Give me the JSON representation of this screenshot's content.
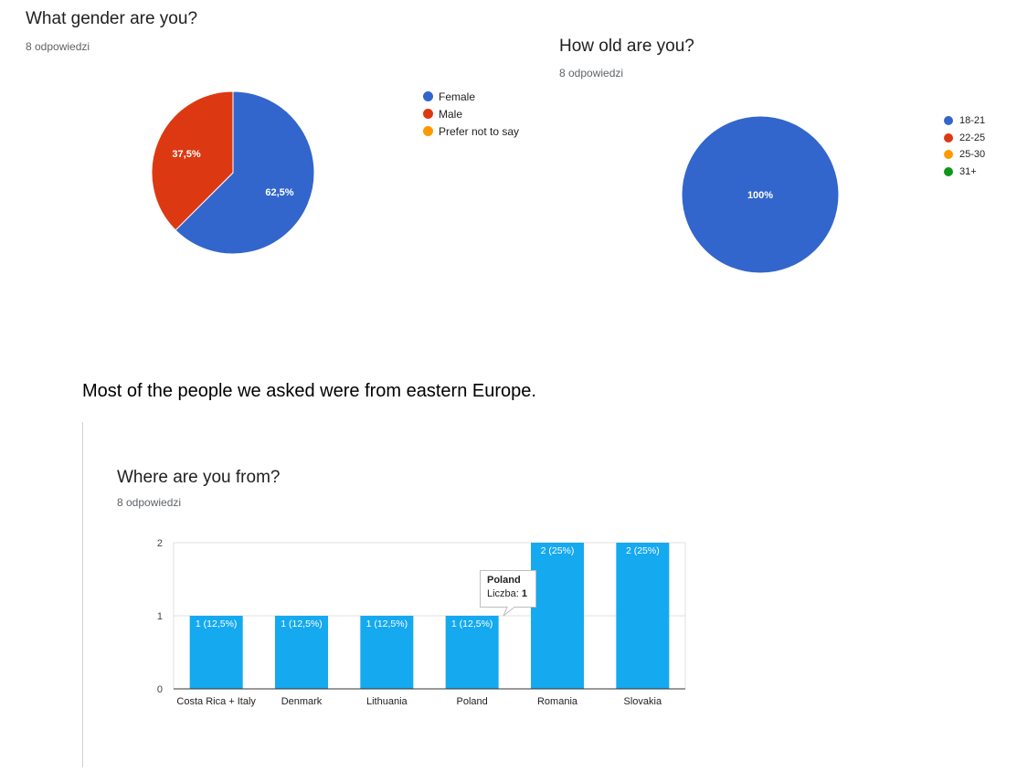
{
  "gender": {
    "title": "What gender are you?",
    "responses": "8 odpowiedzi",
    "legend": [
      {
        "label": "Female",
        "color": "#3366cc"
      },
      {
        "label": "Male",
        "color": "#dc3912"
      },
      {
        "label": "Prefer not to say",
        "color": "#ff9900"
      }
    ]
  },
  "age": {
    "title": "How old are you?",
    "responses": "8 odpowiedzi",
    "legend": [
      {
        "label": "18-21",
        "color": "#3366cc"
      },
      {
        "label": "22-25",
        "color": "#dc3912"
      },
      {
        "label": "25-30",
        "color": "#ff9900"
      },
      {
        "label": "31+",
        "color": "#109618"
      }
    ]
  },
  "caption": "Most of the people we asked were from eastern Europe.",
  "country": {
    "title": "Where are you from?",
    "responses": "8 odpowiedzi",
    "tooltip": {
      "title": "Poland",
      "label": "Liczba: ",
      "value": "1"
    }
  },
  "chart_data": [
    {
      "type": "pie",
      "categories": [
        "Female",
        "Male",
        "Prefer not to say"
      ],
      "values": [
        62.5,
        37.5,
        0
      ],
      "labels": [
        "62,5%",
        "37,5%",
        ""
      ],
      "colors": [
        "#3366cc",
        "#dc3912",
        "#ff9900"
      ],
      "title": "What gender are you?",
      "legend_position": "right"
    },
    {
      "type": "pie",
      "categories": [
        "18-21",
        "22-25",
        "25-30",
        "31+"
      ],
      "values": [
        100,
        0,
        0,
        0
      ],
      "labels": [
        "100%",
        "",
        "",
        ""
      ],
      "colors": [
        "#3366cc",
        "#dc3912",
        "#ff9900",
        "#109618"
      ],
      "title": "How old are you?",
      "legend_position": "right"
    },
    {
      "type": "bar",
      "categories": [
        "Costa Rica + Italy",
        "Denmark",
        "Lithuania",
        "Poland",
        "Romania",
        "Slovakia"
      ],
      "values": [
        1,
        1,
        1,
        1,
        2,
        2
      ],
      "labels": [
        "1 (12,5%)",
        "1 (12,5%)",
        "1 (12,5%)",
        "1 (12,5%)",
        "2 (25%)",
        "2 (25%)"
      ],
      "yticks": [
        "0",
        "1",
        "2"
      ],
      "ylim": [
        0,
        2
      ],
      "color": "#15a9f0",
      "title": "Where are you from?",
      "xlabel": "",
      "ylabel": "",
      "grid": true
    }
  ]
}
